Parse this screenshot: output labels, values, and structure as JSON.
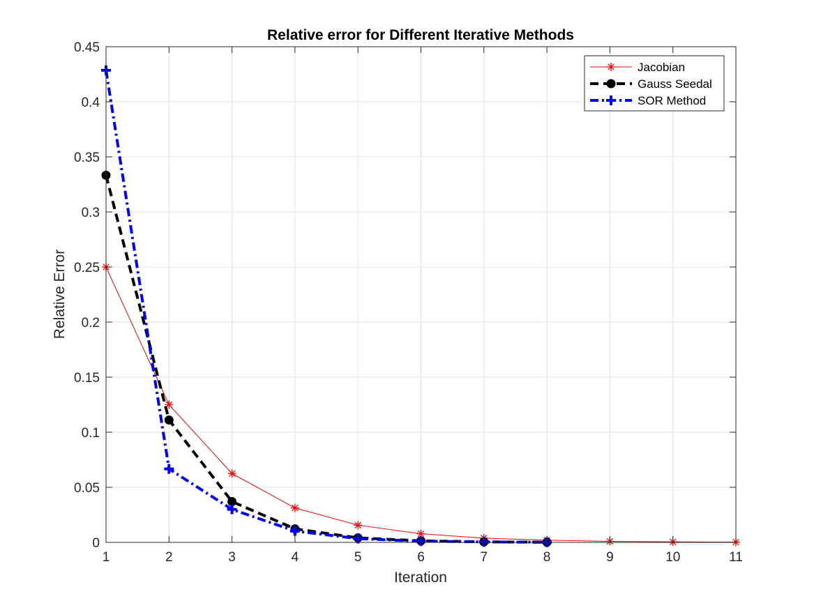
{
  "chart_data": {
    "type": "line",
    "title": "Relative error for Different Iterative Methods",
    "xlabel": "Iteration",
    "ylabel": "Relative Error",
    "xlim": [
      1,
      11
    ],
    "ylim": [
      0,
      0.45
    ],
    "xticks": [
      1,
      2,
      3,
      4,
      5,
      6,
      7,
      8,
      9,
      10,
      11
    ],
    "xtick_labels": [
      "1",
      "2",
      "3",
      "4",
      "5",
      "6",
      "7",
      "8",
      "9",
      "10",
      "11"
    ],
    "yticks": [
      0,
      0.05,
      0.1,
      0.15,
      0.2,
      0.25,
      0.3,
      0.35,
      0.4,
      0.45
    ],
    "ytick_labels": [
      "0",
      "0.05",
      "0.1",
      "0.15",
      "0.2",
      "0.25",
      "0.3",
      "0.35",
      "0.4",
      "0.45"
    ],
    "grid": true,
    "legend_position": "top-right",
    "series": [
      {
        "name": "Jacobian",
        "color": "#ff0000",
        "line_style": "solid",
        "marker": "asterisk",
        "x": [
          1,
          2,
          3,
          4,
          5,
          6,
          7,
          8,
          9,
          10,
          11
        ],
        "values": [
          0.25,
          0.125,
          0.0625,
          0.03125,
          0.015625,
          0.0078,
          0.0039,
          0.00195,
          0.00098,
          0.00049,
          0.00024
        ]
      },
      {
        "name": "Gauss Seedal",
        "color": "#000000",
        "line_style": "dashed",
        "marker": "circle",
        "x": [
          1,
          2,
          3,
          4,
          5,
          6,
          7,
          8
        ],
        "values": [
          0.3333,
          0.1111,
          0.037,
          0.0123,
          0.0041,
          0.0014,
          0.00046,
          0.00015
        ]
      },
      {
        "name": "SOR Method",
        "color": "#0000ff",
        "line_style": "dash-dot",
        "marker": "plus",
        "x": [
          1,
          2,
          3,
          4,
          5,
          6,
          7,
          8
        ],
        "values": [
          0.4286,
          0.0667,
          0.03,
          0.0103,
          0.0034,
          0.0011,
          0.0004,
          0.00013
        ]
      }
    ]
  }
}
